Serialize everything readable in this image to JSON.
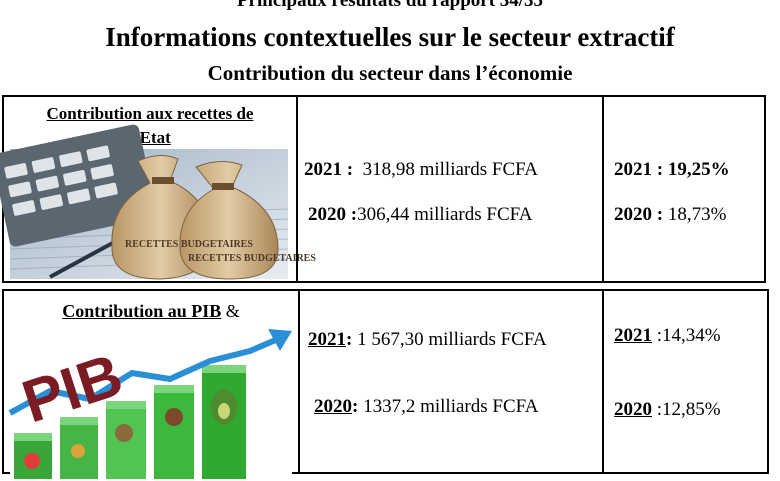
{
  "header": {
    "line1": "Principaux résultats du rapport 34/35",
    "title": "Informations contextuelles sur le secteur extractif",
    "subtitle": "Contribution du secteur dans l’économie"
  },
  "rows": [
    {
      "label_line1": "Contribution aux recettes de",
      "label_line2": "l’Etat",
      "image_text_1": "RECETTES BUDGETAIRES",
      "image_text_2": "RECETTES BUDGETAIRES",
      "value_2021_year": "2021 :",
      "value_2021": "318,98 milliards FCFA",
      "value_2020_year": "2020 :",
      "value_2020": "306,44 milliards FCFA",
      "pct_2021_year": "2021 :",
      "pct_2021": "19,25%",
      "pct_2020_year": "2020 :",
      "pct_2020": "18,73%"
    },
    {
      "label": "Contribution au PIB",
      "label_suffix": "&",
      "image_text": "PIB",
      "value_2021_year": "2021",
      "value_2021_sep": ":",
      "value_2021": "1 567,30 milliards FCFA",
      "value_2020_year": "2020",
      "value_2020_sep": ":",
      "value_2020": "1337,2  milliards FCFA",
      "pct_2021_year": "2021",
      "pct_2021": ":14,34%",
      "pct_2020_year": "2020",
      "pct_2020": ":12,85%"
    }
  ]
}
